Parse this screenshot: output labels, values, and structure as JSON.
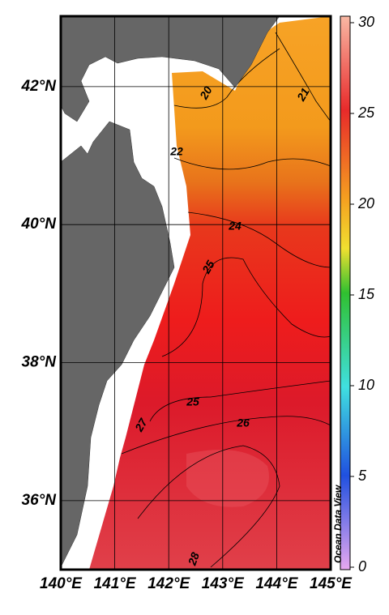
{
  "map": {
    "lon_range": [
      140,
      145
    ],
    "lat_range": [
      35,
      43.02
    ],
    "lon_ticks": [
      {
        "value": 140,
        "label": "140°E"
      },
      {
        "value": 141,
        "label": "141°E"
      },
      {
        "value": 142,
        "label": "142°E"
      },
      {
        "value": 143,
        "label": "143°E"
      },
      {
        "value": 144,
        "label": "144°E"
      },
      {
        "value": 145,
        "label": "145°E"
      }
    ],
    "lat_ticks": [
      {
        "value": 36,
        "label": "36°N"
      },
      {
        "value": 38,
        "label": "38°N"
      },
      {
        "value": 40,
        "label": "40°N"
      },
      {
        "value": 42,
        "label": "42°N"
      }
    ],
    "colorbar": {
      "range": [
        0,
        30
      ],
      "ticks": [
        0,
        5,
        10,
        15,
        20,
        25,
        30
      ]
    },
    "contour_labels": [
      20,
      21,
      22,
      24,
      25,
      25,
      26,
      27,
      28
    ],
    "watermark": "Ocean Data View"
  }
}
